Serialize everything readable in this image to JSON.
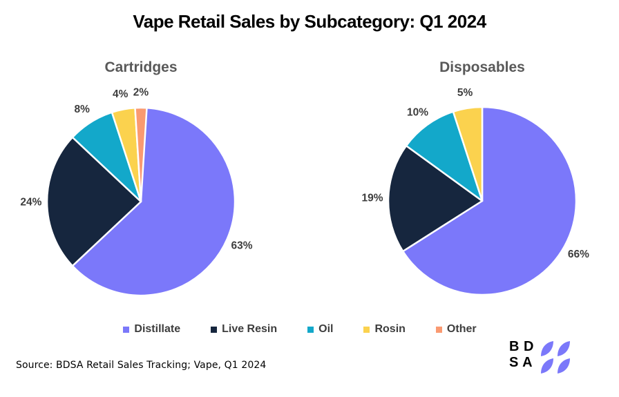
{
  "title": "Vape Retail Sales by Subcategory: Q1 2024",
  "source": "Source: BDSA Retail Sales Tracking; Vape, Q1 2024",
  "logo": {
    "line1": "B D",
    "line2": "S A",
    "petal_color": "#7b78fa",
    "text_color": "#000000"
  },
  "legend": [
    {
      "label": "Distillate",
      "color": "#7b78fa"
    },
    {
      "label": "Live Resin",
      "color": "#16263e"
    },
    {
      "label": "Oil",
      "color": "#13a8ca"
    },
    {
      "label": "Rosin",
      "color": "#fbd24e"
    },
    {
      "label": "Other",
      "color": "#fa9a71"
    }
  ],
  "chart_data": [
    {
      "type": "pie",
      "title": "Cartridges",
      "categories": [
        "Distillate",
        "Live Resin",
        "Oil",
        "Rosin",
        "Other"
      ],
      "values": [
        63,
        24,
        8,
        4,
        2
      ],
      "unit": "%",
      "colors": [
        "#7b78fa",
        "#16263e",
        "#13a8ca",
        "#fbd24e",
        "#fa9a71"
      ],
      "start_angle_deg": 0,
      "direction": "clockwise",
      "labels_outside": true,
      "legend_position": "bottom-shared"
    },
    {
      "type": "pie",
      "title": "Disposables",
      "categories": [
        "Distillate",
        "Live Resin",
        "Oil",
        "Rosin",
        "Other"
      ],
      "values": [
        66,
        19,
        10,
        5,
        0
      ],
      "unit": "%",
      "colors": [
        "#7b78fa",
        "#16263e",
        "#13a8ca",
        "#fbd24e",
        "#fa9a71"
      ],
      "start_angle_deg": 0,
      "direction": "clockwise",
      "labels_outside": true,
      "legend_position": "bottom-shared"
    }
  ],
  "styles": {
    "background": "#ffffff",
    "title_color": "#000000",
    "pie_title_color": "#595959",
    "label_color": "#3d3d3d",
    "legend_text_color": "#3d3d3d",
    "slice_stroke": "#ffffff"
  }
}
